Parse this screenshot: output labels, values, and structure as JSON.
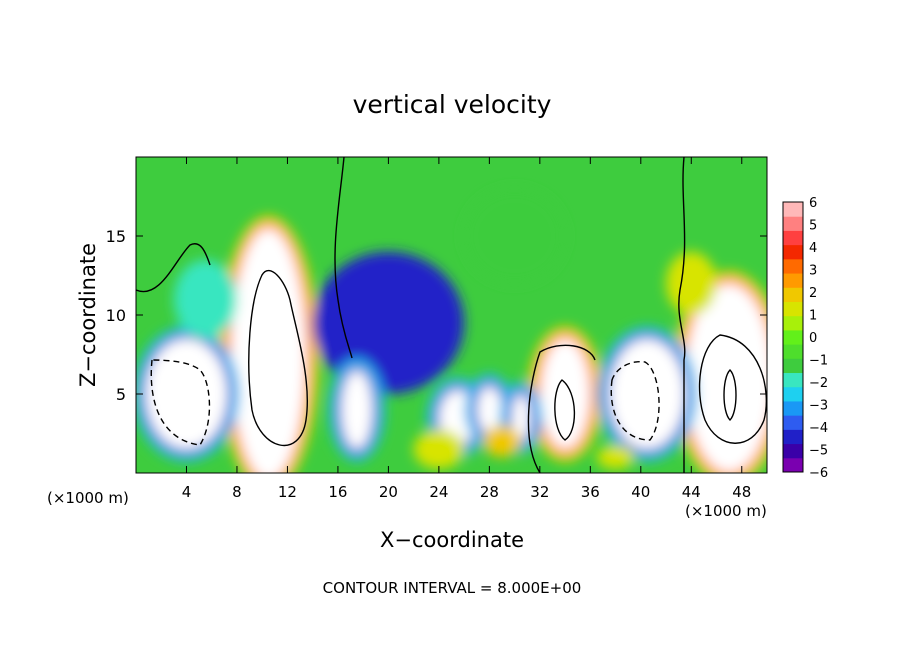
{
  "chart_data": {
    "type": "heatmap",
    "title": "vertical velocity",
    "xlabel": "X−coordinate",
    "ylabel": "Z−coordinate",
    "x_unit_left": "(×1000 m)",
    "x_unit_right": "(×1000 m)",
    "footer": "CONTOUR INTERVAL = 8.000E+00",
    "xlim": [
      0,
      50
    ],
    "ylim": [
      0,
      20
    ],
    "x_ticks": [
      4,
      8,
      12,
      16,
      20,
      24,
      28,
      32,
      36,
      40,
      44,
      48
    ],
    "y_ticks": [
      5,
      10,
      15
    ],
    "colorbar": {
      "min": -6,
      "max": 6,
      "tick_labels": [
        "6",
        "5",
        "4",
        "3",
        "2",
        "1",
        "0",
        "−1",
        "−2",
        "−3",
        "−4",
        "−5",
        "−6"
      ],
      "colors": [
        "#7a00b0",
        "#3a00a8",
        "#2020c8",
        "#2e5cf0",
        "#1a98f5",
        "#1ed0f0",
        "#39e6c0",
        "#3ecc3e",
        "#4ede2c",
        "#62f01a",
        "#a8f00a",
        "#d8e400",
        "#f0c800",
        "#ff9a00",
        "#ff6a00",
        "#f42800",
        "#ff4040",
        "#ff8080",
        "#ffb8b8"
      ]
    },
    "cells": [
      {
        "x": 10.5,
        "z": 7.5,
        "w": 6.0,
        "h": 16.0,
        "value": 6.5
      },
      {
        "x": 47.0,
        "z": 6.0,
        "w": 7.0,
        "h": 12.0,
        "value": 6.5
      },
      {
        "x": 34.0,
        "z": 5.0,
        "w": 4.0,
        "h": 7.0,
        "value": 6.2
      },
      {
        "x": 4.0,
        "z": 5.0,
        "w": 6.5,
        "h": 7.0,
        "value": -6.5
      },
      {
        "x": 40.5,
        "z": 5.0,
        "w": 6.0,
        "h": 7.0,
        "value": -6.5
      },
      {
        "x": 20.0,
        "z": 9.5,
        "w": 12.0,
        "h": 9.0,
        "value": -4.5
      },
      {
        "x": 17.5,
        "z": 4.0,
        "w": 2.5,
        "h": 5.0,
        "value": -6.2
      },
      {
        "x": 25.5,
        "z": 3.5,
        "w": 3.0,
        "h": 3.5,
        "value": -6.2
      },
      {
        "x": 28.0,
        "z": 4.0,
        "w": 2.0,
        "h": 3.0,
        "value": -6.2
      },
      {
        "x": 30.5,
        "z": 3.5,
        "w": 1.5,
        "h": 3.0,
        "value": -6.2
      },
      {
        "x": 29.0,
        "z": 2.0,
        "w": 3.0,
        "h": 2.0,
        "value": 2.0
      },
      {
        "x": 24.0,
        "z": 1.5,
        "w": 4.0,
        "h": 2.5,
        "value": 1.5
      },
      {
        "x": 38.0,
        "z": 1.0,
        "w": 3.0,
        "h": 1.5,
        "value": 1.5
      },
      {
        "x": 30.0,
        "z": 15.0,
        "w": 8.0,
        "h": 6.0,
        "value": -1.5
      },
      {
        "x": 44.0,
        "z": 12.0,
        "w": 4.0,
        "h": 4.0,
        "value": 1.5
      },
      {
        "x": 5.5,
        "z": 11.0,
        "w": 5.0,
        "h": 5.0,
        "value": -1.8
      }
    ]
  }
}
